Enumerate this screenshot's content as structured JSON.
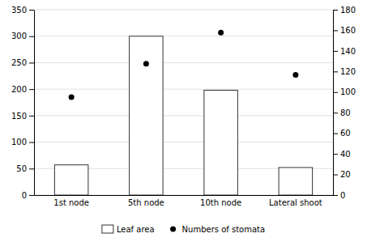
{
  "chart_data": {
    "type": "bar",
    "categories": [
      "1st node",
      "5th node",
      "10th node",
      "Lateral shoot"
    ],
    "series": [
      {
        "name": "Leaf area",
        "type": "bar",
        "color": "#ffffff",
        "values": [
          57,
          300,
          198,
          52
        ]
      },
      {
        "name": "Numbers of stomata",
        "type": "scatter",
        "color": "#000000",
        "marker": "circle",
        "values": [
          185,
          248,
          307,
          227
        ]
      }
    ],
    "ylim": [
      0,
      350
    ],
    "yticks": [
      0,
      50,
      100,
      150,
      200,
      250,
      300,
      350
    ],
    "y2lim": [
      0,
      180
    ],
    "y2ticks": [
      0,
      20,
      40,
      60,
      80,
      100,
      120,
      140,
      160,
      180
    ],
    "grid": true,
    "legend": "bottom"
  }
}
